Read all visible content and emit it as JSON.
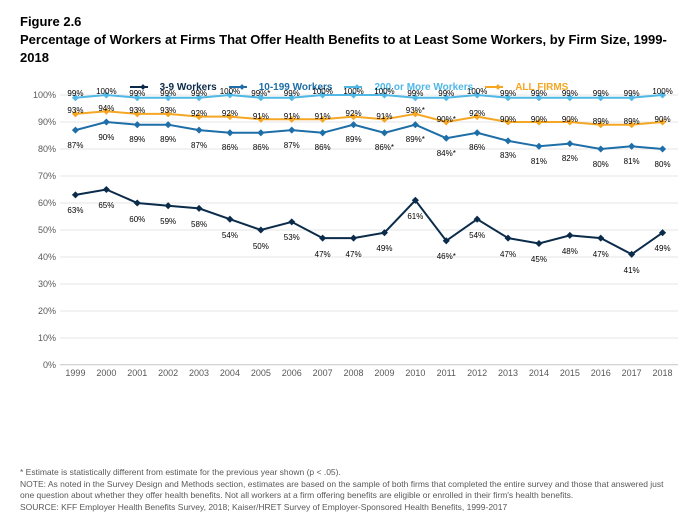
{
  "figure_number": "Figure 2.6",
  "title": "Percentage of Workers at Firms That Offer Health Benefits to at Least Some Workers, by Firm Size, 1999-2018",
  "legend": [
    {
      "label": "3-9 Workers",
      "color": "#0b2b4a"
    },
    {
      "label": "10-199 Workers",
      "color": "#1e6ea7"
    },
    {
      "label": "200 or More Workers",
      "color": "#4fb8e6"
    },
    {
      "label": "ALL FIRMS",
      "color": "#f5a623"
    }
  ],
  "chart": {
    "type": "line",
    "background_color": "#ffffff",
    "grid_color": "#e5e5e5",
    "axis_color": "#bfbfbf",
    "tick_font_size": 9,
    "tick_color": "#595959",
    "data_label_font_size": 8,
    "line_width": 2,
    "marker": "diamond",
    "marker_size": 5,
    "x": {
      "categories": [
        "1999",
        "2000",
        "2001",
        "2002",
        "2003",
        "2004",
        "2005",
        "2006",
        "2007",
        "2008",
        "2009",
        "2010",
        "2011",
        "2012",
        "2013",
        "2014",
        "2015",
        "2016",
        "2017",
        "2018"
      ]
    },
    "y": {
      "min": 0,
      "max": 100,
      "step": 10,
      "suffix": "%"
    },
    "series": [
      {
        "name": "3-9 Workers",
        "color": "#0b2b4a",
        "label_offset_y": 12,
        "data": [
          63,
          65,
          60,
          59,
          58,
          54,
          50,
          53,
          47,
          47,
          49,
          61,
          46,
          54,
          47,
          45,
          48,
          47,
          41,
          49
        ],
        "labels": [
          "63%",
          "65%",
          "60%",
          "59%",
          "58%",
          "54%",
          "50%",
          "53%",
          "47%",
          "47%",
          "49%",
          "61%",
          "46%*",
          "54%",
          "47%",
          "45%",
          "48%",
          "47%",
          "41%",
          "49%"
        ]
      },
      {
        "name": "10-199 Workers",
        "color": "#1e6ea7",
        "label_offset_y": 11,
        "data": [
          87,
          90,
          89,
          89,
          87,
          86,
          86,
          87,
          86,
          89,
          86,
          89,
          84,
          86,
          83,
          81,
          82,
          80,
          81,
          80
        ],
        "labels": [
          "87%",
          "90%",
          "89%",
          "89%",
          "87%",
          "86%",
          "86%",
          "87%",
          "86%",
          "89%",
          "86%*",
          "89%*",
          "84%*",
          "86%",
          "83%",
          "81%",
          "82%",
          "80%",
          "81%",
          "80%"
        ]
      },
      {
        "name": "200 or More Workers",
        "color": "#4fb8e6",
        "label_offset_y": -8,
        "data": [
          99,
          100,
          99,
          99,
          99,
          100,
          99,
          99,
          100,
          100,
          100,
          99,
          99,
          100,
          99,
          99,
          99,
          99,
          99,
          100
        ],
        "labels": [
          "99%",
          "100%",
          "99%",
          "99%",
          "99%",
          "100%",
          "99%*",
          "99%",
          "100%",
          "100%",
          "100%",
          "99%",
          "99%",
          "100%",
          "99%",
          "99%",
          "99%",
          "99%",
          "99%",
          "100%"
        ]
      },
      {
        "name": "ALL FIRMS",
        "color": "#f5a623",
        "label_offset_y": -7,
        "data": [
          93,
          94,
          93,
          93,
          92,
          92,
          91,
          91,
          91,
          92,
          91,
          93,
          90,
          92,
          90,
          90,
          90,
          89,
          89,
          90
        ],
        "labels": [
          "93%",
          "94%",
          "93%",
          "93%",
          "92%",
          "92%",
          "91%",
          "91%",
          "91%",
          "92%",
          "91%",
          "93%*",
          "90%*",
          "92%",
          "90%",
          "90%",
          "90%",
          "89%",
          "89%",
          "90%"
        ]
      }
    ]
  },
  "footnotes": [
    "* Estimate is statistically different from estimate for the previous year shown (p < .05).",
    "NOTE: As noted in the Survey Design and Methods section, estimates are based on the sample of both firms that completed the entire survey and those that answered just one question about whether they offer health benefits. Not all workers at a firm offering benefits are eligible or enrolled in their firm's health benefits.",
    "SOURCE: KFF Employer Health Benefits Survey, 2018; Kaiser/HRET Survey of Employer-Sponsored Health Benefits, 1999-2017"
  ]
}
